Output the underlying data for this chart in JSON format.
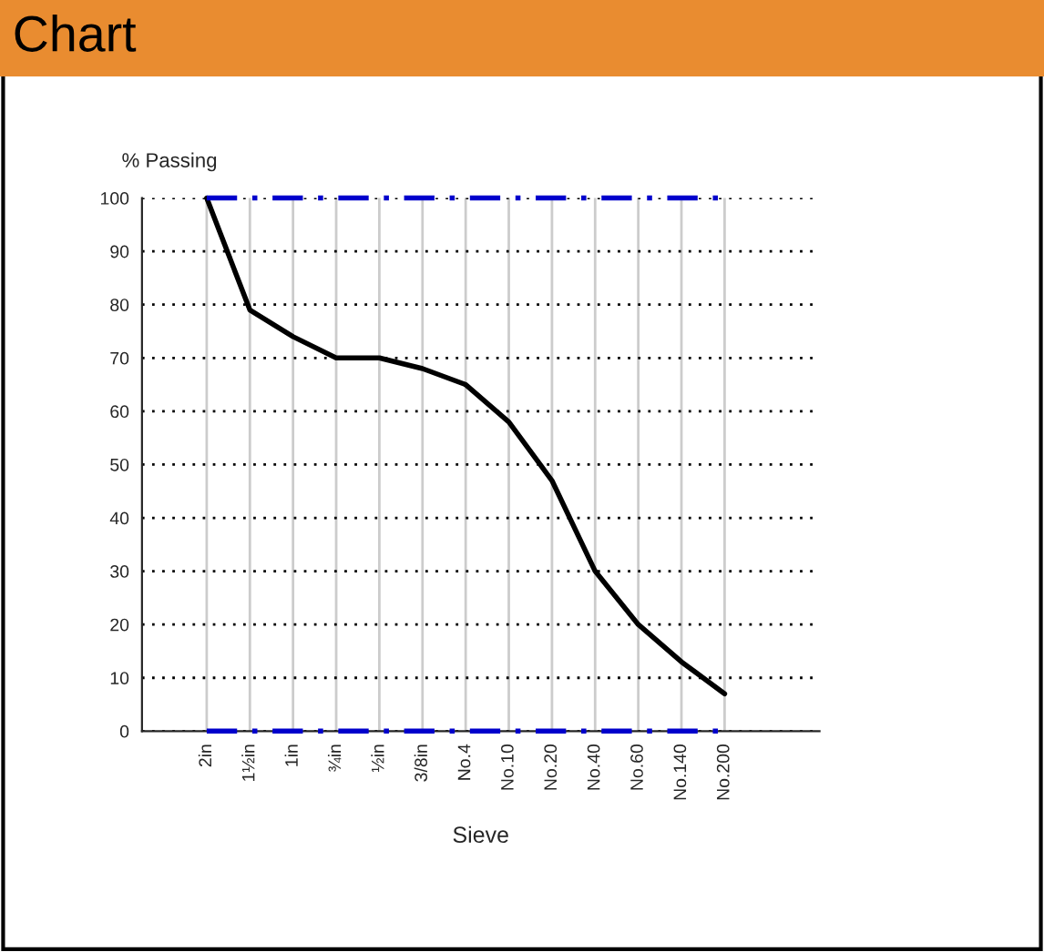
{
  "chart_data": {
    "type": "line",
    "title": "Chart",
    "xlabel": "Sieve",
    "ylabel": "% Passing",
    "categories": [
      "2in",
      "1½in",
      "1in",
      "¾in",
      "½in",
      "3/8in",
      "No.4",
      "No.10",
      "No.20",
      "No.40",
      "No.60",
      "No.140",
      "No.200"
    ],
    "series": [
      {
        "color": "#000000",
        "values": [
          100,
          79,
          74,
          70,
          70,
          68,
          65,
          58,
          47,
          30,
          20,
          13,
          7
        ],
        "line_style": "solid"
      },
      {
        "color": "#0000cc",
        "values": [
          100,
          100,
          100,
          100,
          100,
          100,
          100,
          100,
          100,
          100,
          100,
          100,
          100
        ],
        "line_style": "dashed"
      },
      {
        "color": "#0000cc",
        "values": [
          0,
          0,
          0,
          0,
          0,
          0,
          0,
          0,
          0,
          0,
          0,
          0,
          0
        ],
        "line_style": "dashed"
      }
    ],
    "ylim": [
      0,
      100
    ],
    "yticks": [
      0,
      10,
      20,
      30,
      40,
      50,
      60,
      70,
      80,
      90,
      100
    ],
    "grid": true,
    "marker": "none"
  }
}
